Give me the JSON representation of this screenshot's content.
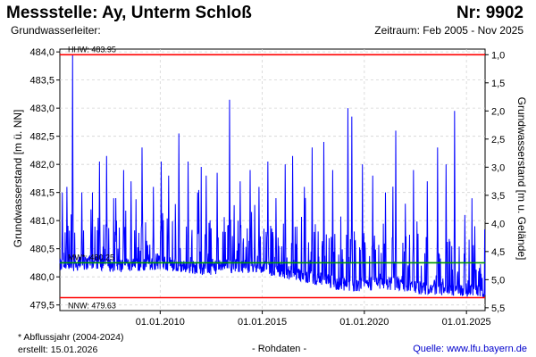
{
  "header": {
    "title": "Messstelle: Ay, Unterm Schloß",
    "number": "Nr: 9902",
    "aquifer_label": "Grundwasserleiter:",
    "period": "Zeitraum: Feb 2005 - Nov 2025"
  },
  "footer": {
    "footnote": "* Abflussjahr (2004-2024)",
    "created": "erstellt:  15.01.2026",
    "raw_data": "- Rohdaten -",
    "source": "Quelle: www.lfu.bayern.de"
  },
  "chart_data": {
    "type": "line",
    "ylabel": "Grundwasserstand [m ü. NN]",
    "ylabel_right": "Grundwasserstand [m u. Gelände]",
    "ylim": [
      479.4,
      484.05
    ],
    "y_ticks": [
      479.5,
      480.0,
      480.5,
      481.0,
      481.5,
      482.0,
      482.5,
      483.0,
      483.5,
      484.0
    ],
    "y_tick_labels": [
      "479,5",
      "480,0",
      "480,5",
      "481,0",
      "481,5",
      "482,0",
      "482,5",
      "483,0",
      "483,5",
      "484,0"
    ],
    "y2_ticks": [
      1.0,
      1.5,
      2.0,
      2.5,
      3.0,
      3.5,
      4.0,
      4.5,
      5.0,
      5.5
    ],
    "y2_tick_labels": [
      "1,0",
      "1,5",
      "2,0",
      "2,5",
      "3,0",
      "3,5",
      "4,0",
      "4,5",
      "5,0",
      "5,5"
    ],
    "ground_level": 484.95,
    "xlim": [
      "2005-02-01",
      "2025-11-30"
    ],
    "x_ticks": [
      "2010-01-01",
      "2015-01-01",
      "2020-01-01",
      "2025-01-01"
    ],
    "x_tick_labels": [
      "01.01.2010",
      "01.01.2015",
      "01.01.2020",
      "01.01.2025"
    ],
    "grid": true,
    "reference_lines": [
      {
        "label": "HHW: 483.95",
        "value": 483.95,
        "color": "#ff0000"
      },
      {
        "label": "MW*: 480.25",
        "value": 480.25,
        "color": "#009900"
      },
      {
        "label": "NNW: 479.63",
        "value": 479.63,
        "color": "#ff0000"
      }
    ],
    "series": [
      {
        "color": "#0000ff",
        "baseline_anchors": [
          [
            "2005-02-01",
            480.2
          ],
          [
            "2006-06-01",
            480.25
          ],
          [
            "2008-01-01",
            480.2
          ],
          [
            "2010-01-01",
            480.25
          ],
          [
            "2012-01-01",
            480.15
          ],
          [
            "2014-01-01",
            480.2
          ],
          [
            "2016-01-01",
            480.1
          ],
          [
            "2017-06-01",
            480.0
          ],
          [
            "2019-01-01",
            479.85
          ],
          [
            "2021-01-01",
            479.9
          ],
          [
            "2023-01-01",
            479.8
          ],
          [
            "2025-11-30",
            479.75
          ]
        ],
        "peaks": [
          [
            "2005-03-15",
            481.5
          ],
          [
            "2005-06-10",
            481.6
          ],
          [
            "2005-09-20",
            483.95
          ],
          [
            "2006-03-01",
            481.5
          ],
          [
            "2006-08-15",
            481.2
          ],
          [
            "2007-01-10",
            482.05
          ],
          [
            "2007-05-20",
            482.15
          ],
          [
            "2007-11-01",
            481.4
          ],
          [
            "2008-03-15",
            481.9
          ],
          [
            "2008-08-01",
            481.7
          ],
          [
            "2009-02-10",
            482.3
          ],
          [
            "2009-09-01",
            481.6
          ],
          [
            "2010-01-20",
            482.05
          ],
          [
            "2010-06-01",
            481.8
          ],
          [
            "2010-12-01",
            482.55
          ],
          [
            "2011-05-15",
            482.05
          ],
          [
            "2011-11-01",
            481.5
          ],
          [
            "2012-04-01",
            481.8
          ],
          [
            "2012-10-15",
            481.85
          ],
          [
            "2013-05-25",
            483.15
          ],
          [
            "2013-12-01",
            481.7
          ],
          [
            "2014-06-01",
            481.9
          ],
          [
            "2014-11-01",
            481.6
          ],
          [
            "2015-04-10",
            482.05
          ],
          [
            "2015-09-01",
            481.4
          ],
          [
            "2016-02-15",
            482.0
          ],
          [
            "2016-07-01",
            482.15
          ],
          [
            "2017-01-20",
            481.6
          ],
          [
            "2017-06-10",
            482.3
          ],
          [
            "2018-01-05",
            482.4
          ],
          [
            "2018-06-15",
            481.9
          ],
          [
            "2019-03-15",
            483.0
          ],
          [
            "2019-05-25",
            482.85
          ],
          [
            "2019-12-01",
            482.0
          ],
          [
            "2020-06-01",
            481.8
          ],
          [
            "2021-01-15",
            481.5
          ],
          [
            "2021-07-15",
            482.6
          ],
          [
            "2022-01-01",
            481.3
          ],
          [
            "2022-06-01",
            481.9
          ],
          [
            "2023-02-01",
            481.7
          ],
          [
            "2023-08-01",
            482.3
          ],
          [
            "2024-01-01",
            482.0
          ],
          [
            "2024-06-01",
            482.95
          ],
          [
            "2024-12-01",
            481.1
          ],
          [
            "2025-06-01",
            480.9
          ]
        ]
      }
    ]
  }
}
